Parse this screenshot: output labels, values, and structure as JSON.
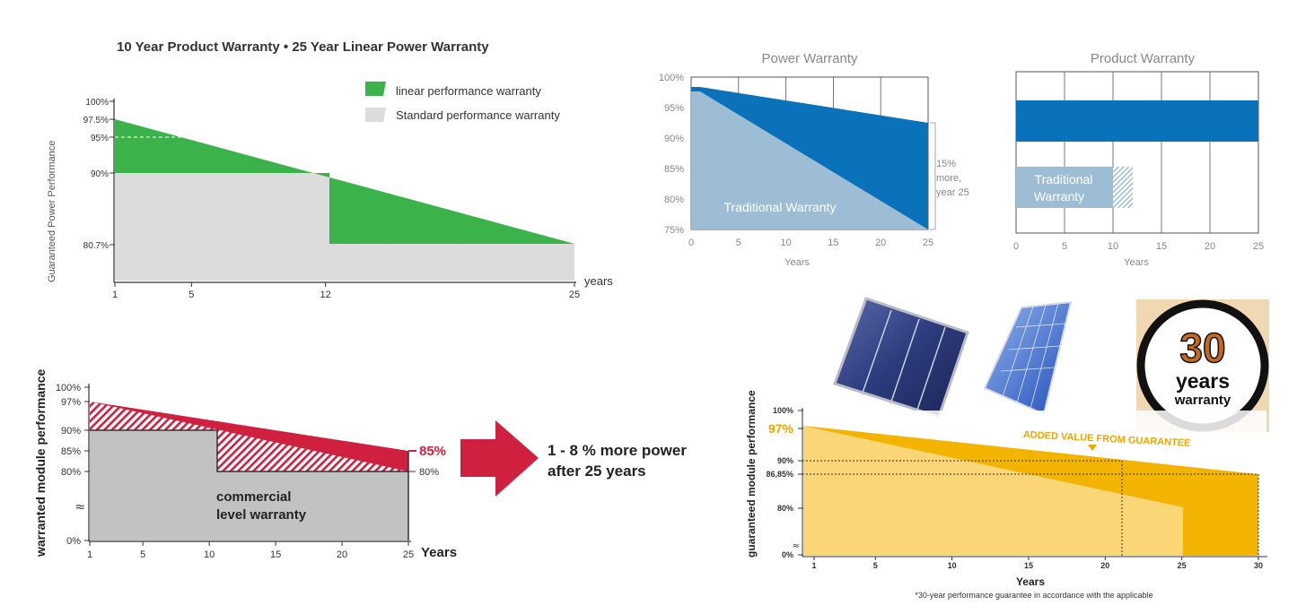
{
  "colors": {
    "green": "#3bb34a",
    "light_grey": "#dcdcdc",
    "blue_dark": "#0a72bb",
    "blue_light": "#9dbdd4",
    "crimson": "#d0203f",
    "grey_area": "#c2c2c2",
    "gold": "#f2b400",
    "gold_light": "#fad676",
    "badge_bg": "#efd8b2",
    "badge_orange": "#c46a20"
  },
  "chart_data": [
    {
      "type": "area",
      "title": "10 Year Product Warranty • 25 Year Linear Power Warranty",
      "ylabel": "Guaranteed Power Performance",
      "xlabel": "years",
      "x_ticks": [
        "1",
        "5",
        "12",
        "25"
      ],
      "y_ticks": [
        "100%",
        "97.5%",
        "95%",
        "90%",
        "80.7%"
      ],
      "legend": [
        "linear performance warranty",
        "Standard performance warranty"
      ],
      "legend_position": "top-right",
      "series": [
        {
          "name": "linear performance warranty",
          "x": [
            1,
            25
          ],
          "y": [
            97.5,
            80.7
          ]
        },
        {
          "name": "Standard performance warranty",
          "x": [
            1,
            12,
            12,
            25
          ],
          "y": [
            90,
            90,
            80.7,
            80.7
          ]
        }
      ]
    },
    {
      "type": "area",
      "title": "Power Warranty",
      "xlabel": "Years",
      "x_ticks": [
        "0",
        "5",
        "10",
        "15",
        "20",
        "25"
      ],
      "y_ticks": [
        "100%",
        "95%",
        "90%",
        "85%",
        "80%",
        "75%"
      ],
      "xlim": [
        0,
        25
      ],
      "ylim": [
        75,
        100
      ],
      "annotation": [
        "15%",
        "more,",
        "year 25"
      ],
      "series": [
        {
          "x": [
            0,
            1,
            25
          ],
          "y": [
            98,
            98,
            92
          ]
        },
        {
          "name": "Traditional Warranty",
          "x": [
            0,
            1,
            25
          ],
          "y": [
            97,
            97,
            75
          ]
        }
      ]
    },
    {
      "type": "bar",
      "title": "Product Warranty",
      "xlabel": "Years",
      "x_ticks": [
        "0",
        "5",
        "10",
        "15",
        "20",
        "25"
      ],
      "xlim": [
        0,
        25
      ],
      "series": [
        {
          "values": [
            25
          ]
        },
        {
          "name": "Traditional Warranty",
          "values": [
            10
          ],
          "extension": 12
        }
      ],
      "bar_label_lines": [
        "Traditional",
        "Warranty"
      ]
    },
    {
      "type": "area",
      "ylabel": "warranted module performance",
      "xlabel": "Years",
      "x_ticks": [
        "1",
        "5",
        "10",
        "15",
        "20",
        "25"
      ],
      "y_ticks": [
        "100%",
        "97%",
        "90%",
        "85%",
        "80%",
        "0%"
      ],
      "series": [
        {
          "x": [
            1,
            25
          ],
          "y": [
            97,
            85
          ]
        },
        {
          "name": "commercial level warranty",
          "x": [
            1,
            10,
            10,
            25
          ],
          "y": [
            90,
            90,
            80,
            80
          ]
        }
      ],
      "area_label_lines": [
        "commercial",
        "level warranty"
      ],
      "end_labels": {
        "top": "85%",
        "bottom": "80%"
      },
      "callout_lines": [
        "1 - 8 % more power",
        "after 25 years"
      ]
    },
    {
      "type": "area",
      "ylabel": "guaranteed module performance",
      "xlabel": "Years",
      "x_ticks": [
        "1",
        "5",
        "10",
        "15",
        "20",
        "25",
        "30"
      ],
      "y_ticks": [
        "100%",
        "97%",
        "90%",
        "86,85%",
        "80%",
        "0%"
      ],
      "series": [
        {
          "x": [
            1,
            30
          ],
          "y": [
            97,
            86.85
          ]
        },
        {
          "x": [
            1,
            25
          ],
          "y": [
            97,
            80
          ]
        }
      ],
      "annotation": "ADDED VALUE FROM GUARANTEE",
      "badge": {
        "number": "30",
        "line1": "years",
        "line2": "warranty"
      },
      "footnote": "*30-year performance guarantee in accordance with the applicable"
    }
  ]
}
